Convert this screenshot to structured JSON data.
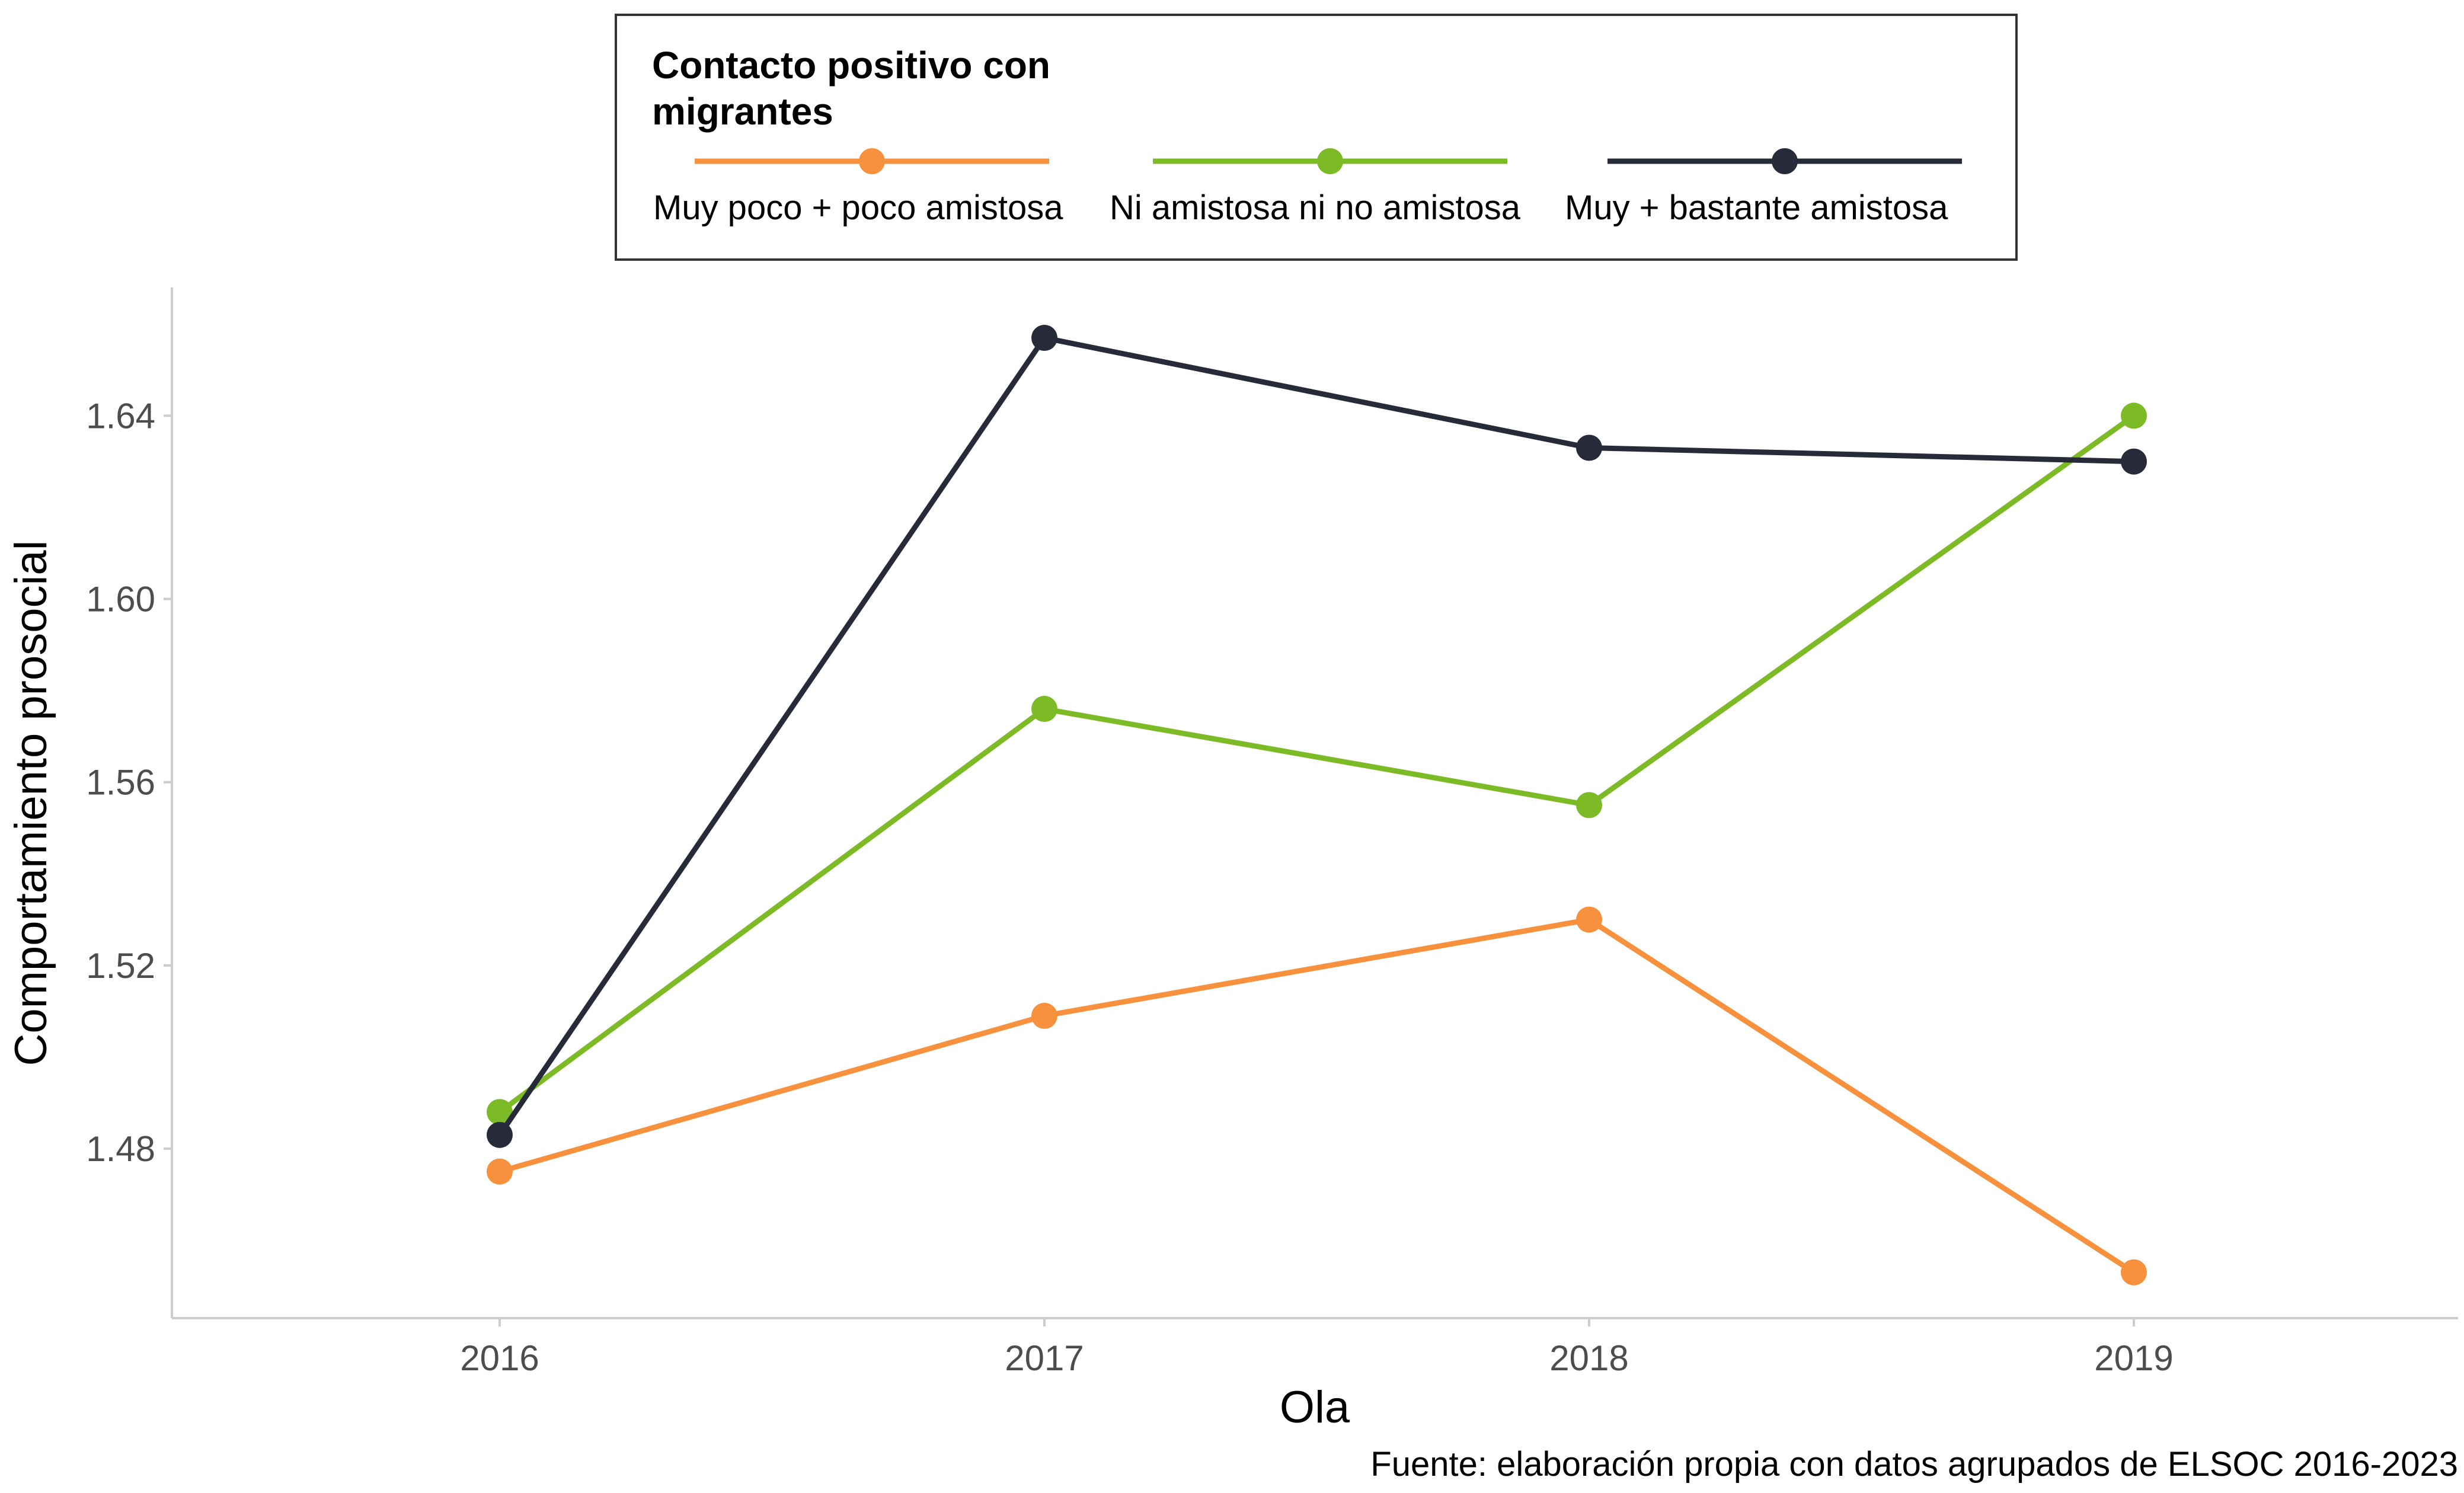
{
  "chart_data": {
    "type": "line",
    "title": "",
    "xlabel": "Ola",
    "ylabel": "Comportamiento prosocial",
    "x": [
      "2016",
      "2017",
      "2018",
      "2019"
    ],
    "yticks": [
      "1.48",
      "1.52",
      "1.56",
      "1.60",
      "1.64"
    ],
    "ylim": [
      1.443,
      1.668
    ],
    "grid": false,
    "legend": {
      "title_lines": [
        "Contacto positivo con",
        "migrantes"
      ],
      "position": "top"
    },
    "series": [
      {
        "name": "Muy poco + poco amistosa",
        "color": "#F7913D",
        "values": [
          1.475,
          1.509,
          1.53,
          1.453
        ]
      },
      {
        "name": "Ni amistosa ni no amistosa",
        "color": "#7CBB26",
        "values": [
          1.488,
          1.576,
          1.555,
          1.64
        ]
      },
      {
        "name": "Muy + bastante amistosa",
        "color": "#272B39",
        "values": [
          1.483,
          1.657,
          1.633,
          1.63
        ]
      }
    ],
    "caption": "Fuente: elaboración propia con datos agrupados de ELSOC 2016-2023"
  }
}
